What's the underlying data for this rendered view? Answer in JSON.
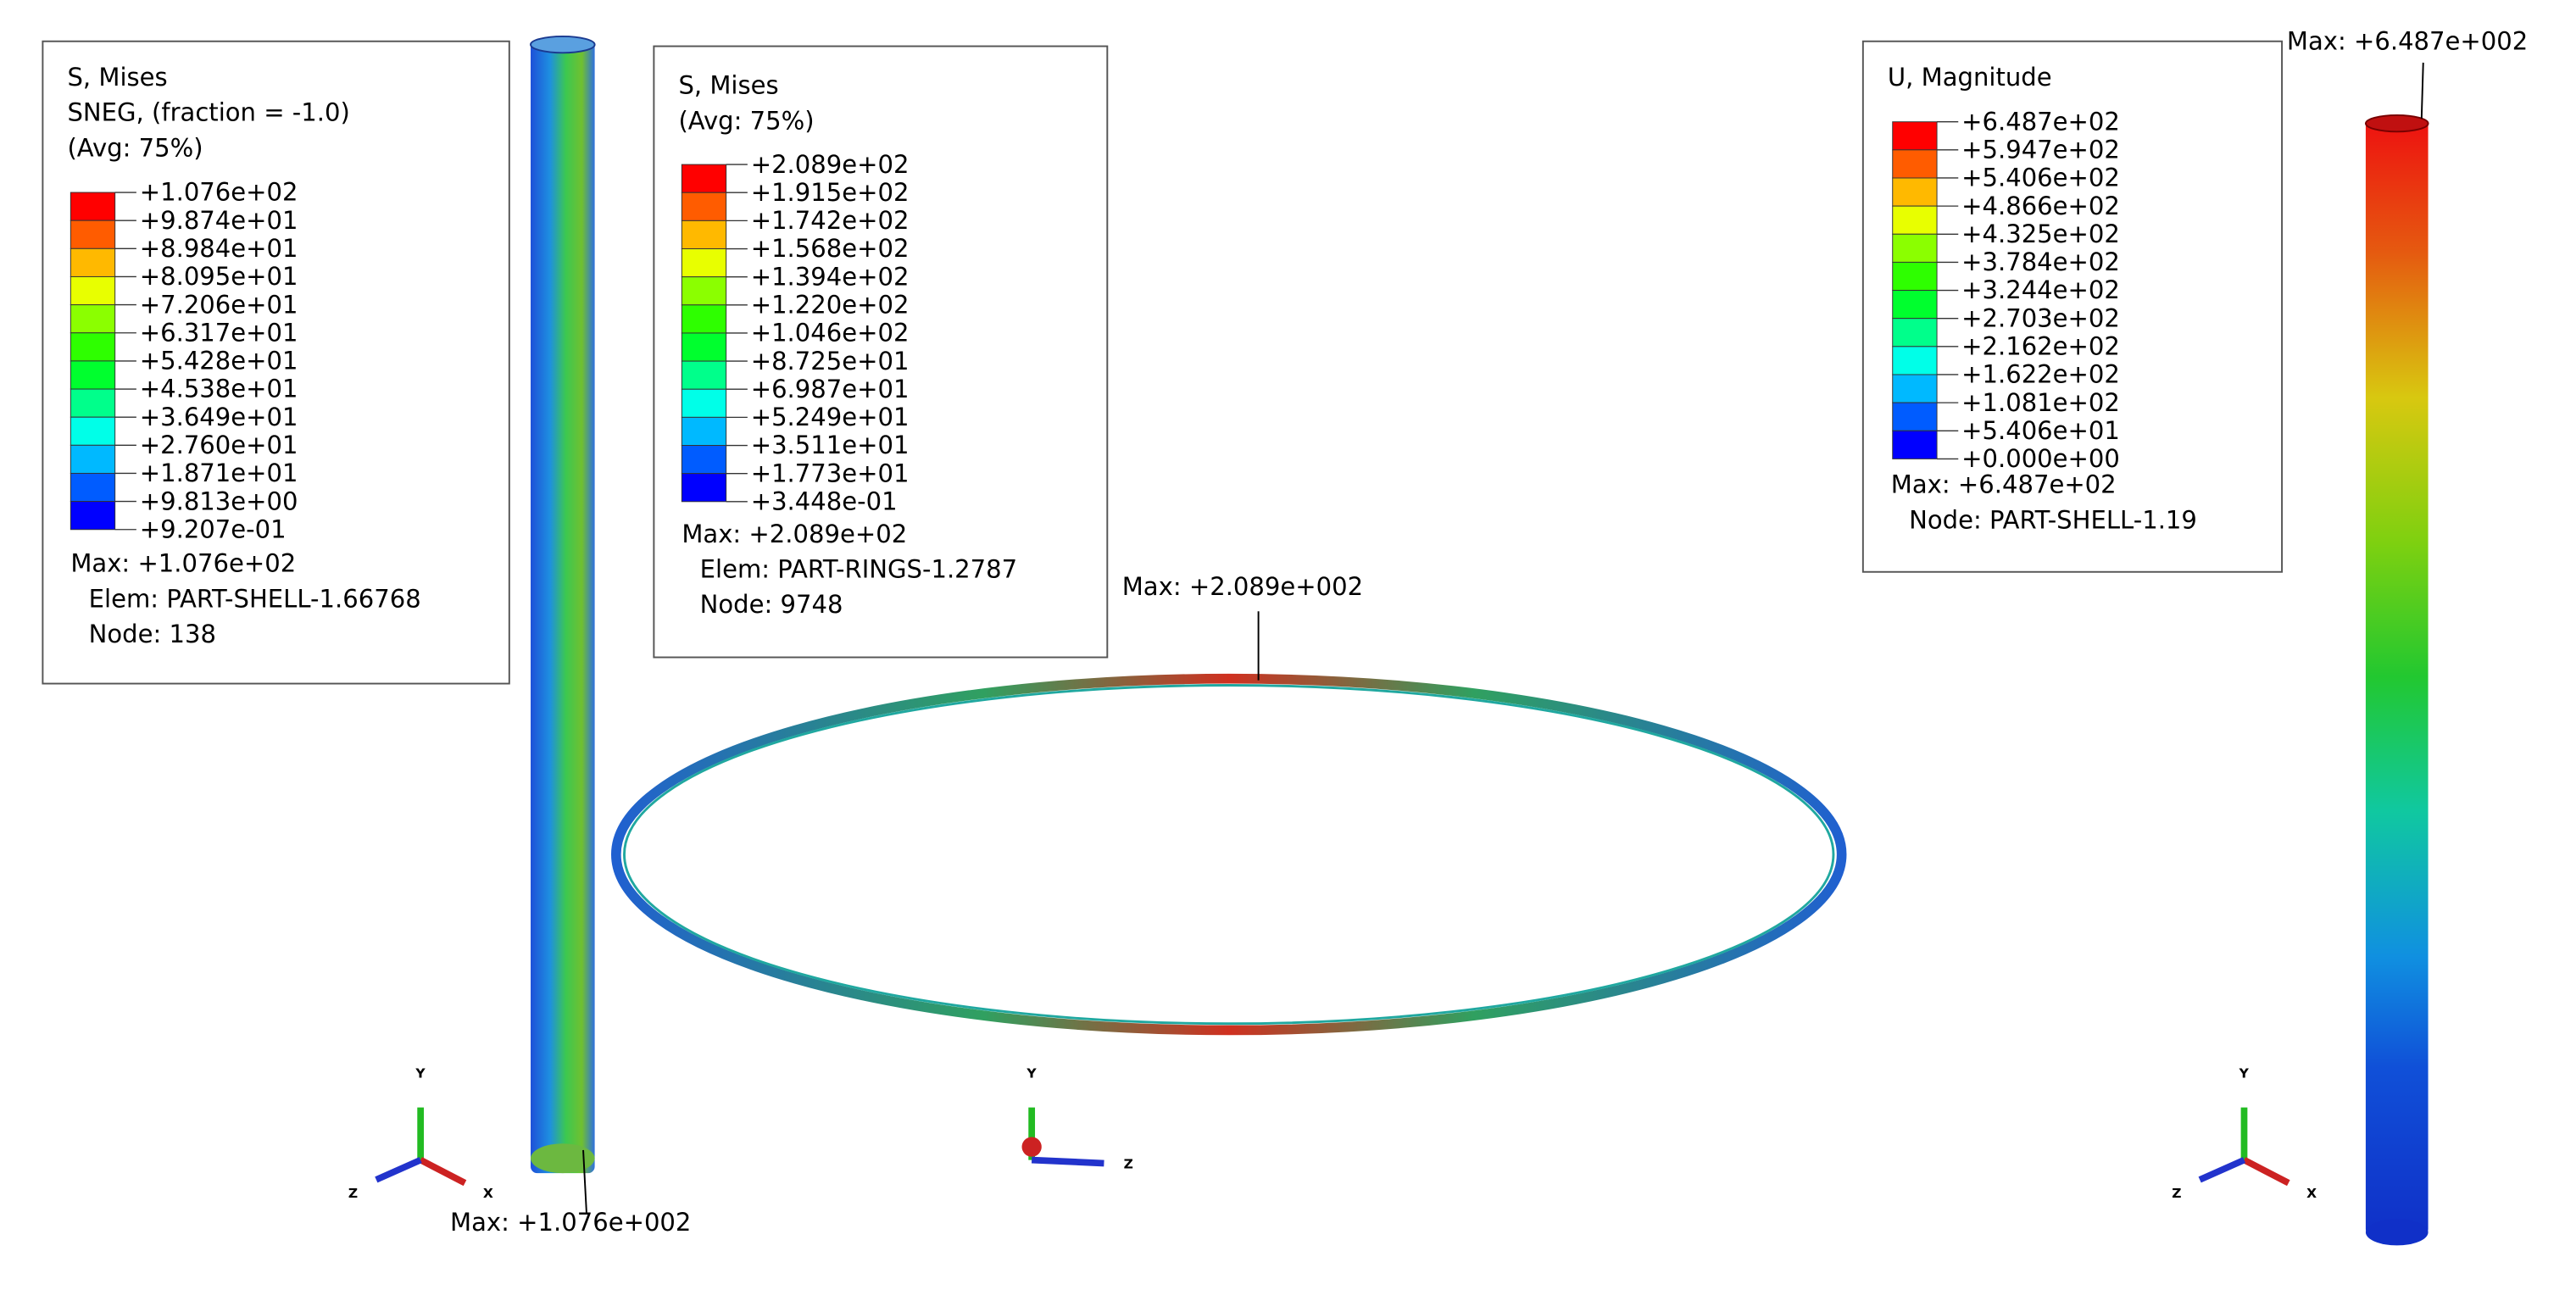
{
  "band_colors": [
    "#ff0000",
    "#ff5c00",
    "#ffb900",
    "#e8ff00",
    "#8bff00",
    "#2eff00",
    "#00ff2e",
    "#00ff8b",
    "#00ffe8",
    "#00b9ff",
    "#005cff",
    "#0000ff"
  ],
  "panels": [
    {
      "title_lines": [
        "S, Mises",
        "SNEG, (fraction = -1.0)",
        "(Avg: 75%)"
      ],
      "levels": [
        "+1.076e+02",
        "+9.874e+01",
        "+8.984e+01",
        "+8.095e+01",
        "+7.206e+01",
        "+6.317e+01",
        "+5.428e+01",
        "+4.538e+01",
        "+3.649e+01",
        "+2.760e+01",
        "+1.871e+01",
        "+9.813e+00",
        "+9.207e-01"
      ],
      "max_lines": [
        "Max: +1.076e+02",
        "Elem: PART-SHELL-1.66768",
        "Node: 138"
      ],
      "annotation": "Max: +1.076e+002"
    },
    {
      "title_lines": [
        "S, Mises",
        "(Avg: 75%)"
      ],
      "levels": [
        "+2.089e+02",
        "+1.915e+02",
        "+1.742e+02",
        "+1.568e+02",
        "+1.394e+02",
        "+1.220e+02",
        "+1.046e+02",
        "+8.725e+01",
        "+6.987e+01",
        "+5.249e+01",
        "+3.511e+01",
        "+1.773e+01",
        "+3.448e-01"
      ],
      "max_lines": [
        "Max: +2.089e+02",
        "Elem: PART-RINGS-1.2787",
        "Node: 9748"
      ],
      "annotation": "Max: +2.089e+002"
    },
    {
      "title_lines": [
        "U, Magnitude"
      ],
      "levels": [
        "+6.487e+02",
        "+5.947e+02",
        "+5.406e+02",
        "+4.866e+02",
        "+4.325e+02",
        "+3.784e+02",
        "+3.244e+02",
        "+2.703e+02",
        "+2.162e+02",
        "+1.622e+02",
        "+1.081e+02",
        "+5.406e+01",
        "+0.000e+00"
      ],
      "max_lines": [
        "Max: +6.487e+02",
        "Node: PART-SHELL-1.19"
      ],
      "annotation": "Max: +6.487e+002"
    }
  ],
  "triads": [
    {
      "y": "Y",
      "x": "X",
      "z": "Z"
    },
    {
      "y": "Y",
      "z": "Z"
    },
    {
      "y": "Y",
      "x": "X",
      "z": "Z"
    }
  ]
}
